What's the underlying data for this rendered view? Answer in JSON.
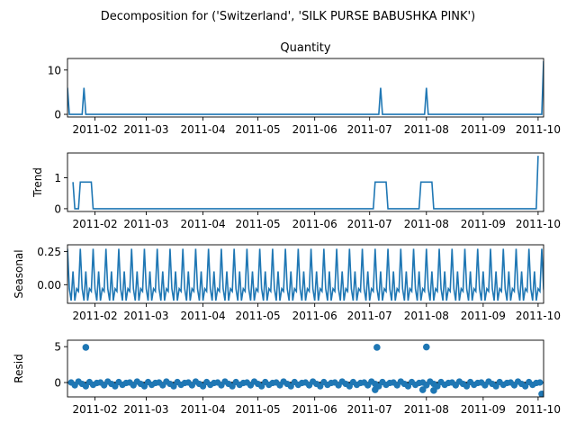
{
  "chart_data": {
    "type": "line",
    "suptitle": "Decomposition for ('Switzerland', 'SILK PURSE BABUSHKA PINK')",
    "x_range": [
      "2011-01-17",
      "2011-10-04"
    ],
    "x_ticks": [
      "2011-02",
      "2011-03",
      "2011-04",
      "2011-05",
      "2011-06",
      "2011-07",
      "2011-08",
      "2011-09",
      "2011-10"
    ],
    "panels": [
      {
        "title": "Quantity",
        "ylabel": "",
        "type": "line",
        "ylim": [
          -0.6,
          12.6
        ],
        "yticks": [
          0,
          10
        ],
        "baseline": 0,
        "spikes": [
          {
            "date": "2011-01-17",
            "value": 6
          },
          {
            "date": "2011-01-26",
            "value": 6
          },
          {
            "date": "2011-07-07",
            "value": 6
          },
          {
            "date": "2011-08-01",
            "value": 6
          },
          {
            "date": "2011-10-04",
            "value": 12
          }
        ],
        "color": "#1f77b4"
      },
      {
        "title": "",
        "ylabel": "Trend",
        "type": "line",
        "ylim": [
          -0.09,
          1.8
        ],
        "yticks": [
          0,
          1
        ],
        "points": [
          [
            "2011-01-20",
            0.86
          ],
          [
            "2011-01-21",
            0.0
          ],
          [
            "2011-01-23",
            0.0
          ],
          [
            "2011-01-24",
            0.86
          ],
          [
            "2011-01-30",
            0.86
          ],
          [
            "2011-01-31",
            0.0
          ],
          [
            "2011-07-03",
            0.0
          ],
          [
            "2011-07-04",
            0.86
          ],
          [
            "2011-07-10",
            0.86
          ],
          [
            "2011-07-11",
            0.0
          ],
          [
            "2011-07-28",
            0.0
          ],
          [
            "2011-07-29",
            0.86
          ],
          [
            "2011-08-04",
            0.86
          ],
          [
            "2011-08-05",
            0.0
          ],
          [
            "2011-09-29",
            0.0
          ],
          [
            "2011-09-30",
            0.0
          ],
          [
            "2011-10-01",
            1.71
          ]
        ],
        "color": "#1f77b4"
      },
      {
        "title": "",
        "ylabel": "Seasonal",
        "type": "line",
        "ylim": [
          -0.14,
          0.3
        ],
        "yticks": [
          0,
          0.25
        ],
        "ytick_labels": [
          "0.00",
          "0.25"
        ],
        "period_days": 7,
        "weekly_pattern": [
          0.27,
          -0.03,
          -0.12,
          0.1,
          -0.12,
          -0.03,
          -0.05
        ],
        "color": "#1f77b4"
      },
      {
        "title": "",
        "ylabel": "Resid",
        "type": "scatter",
        "ylim": [
          -2.0,
          5.9
        ],
        "yticks": [
          0,
          5
        ],
        "baseline": 0,
        "points": [
          [
            "2011-01-27",
            4.9
          ],
          [
            "2011-07-05",
            4.9
          ],
          [
            "2011-08-01",
            4.95
          ],
          [
            "2011-07-04",
            -1.0
          ],
          [
            "2011-07-30",
            -1.0
          ],
          [
            "2011-08-05",
            -1.1
          ],
          [
            "2011-10-03",
            -1.6
          ]
        ],
        "small_residual_range": [
          -1.1,
          0.2
        ],
        "color": "#1f77b4"
      }
    ],
    "colors": {
      "line": "#1f77b4",
      "baseline": "#000000"
    }
  }
}
